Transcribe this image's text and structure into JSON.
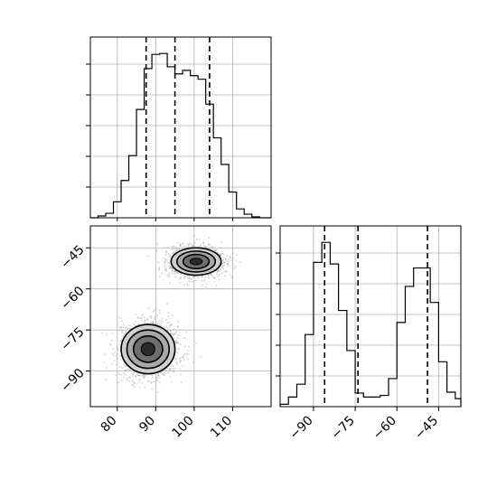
{
  "chart_data": [
    {
      "type": "histogram",
      "variable": "x",
      "xlim": [
        73,
        120
      ],
      "quantile_lines": [
        87.5,
        95,
        104
      ],
      "bin_edges": [
        73,
        75,
        77,
        79,
        81,
        83,
        85,
        87,
        89,
        91,
        93,
        95,
        97,
        99,
        101,
        103,
        105,
        107,
        109,
        111,
        113,
        115,
        117,
        119,
        120
      ],
      "counts": [
        0,
        2,
        5,
        18,
        42,
        70,
        122,
        168,
        184,
        185,
        170,
        162,
        166,
        160,
        156,
        128,
        90,
        60,
        29,
        10,
        4,
        1,
        0,
        0
      ],
      "grid": true
    },
    {
      "type": "contour-scatter",
      "variables": [
        "x",
        "y"
      ],
      "xlim": [
        73,
        120
      ],
      "ylim": [
        -103,
        -37
      ],
      "xticks": [
        "80",
        "90",
        "100",
        "110"
      ],
      "yticks": [
        "−45",
        "−60",
        "−75",
        "−90"
      ],
      "clusters": [
        {
          "center": [
            100.5,
            -50
          ],
          "contour_radii": [
            [
              6.5,
              5
            ],
            [
              5,
              3.8
            ],
            [
              3.4,
              2.6
            ],
            [
              1.6,
              1.2
            ]
          ]
        },
        {
          "center": [
            88,
            -82
          ],
          "contour_radii": [
            [
              7,
              9
            ],
            [
              5.5,
              7
            ],
            [
              3.8,
              4.8
            ],
            [
              1.8,
              2.4
            ]
          ]
        }
      ],
      "grid": true
    },
    {
      "type": "histogram",
      "variable": "y",
      "xlim": [
        -102,
        -37
      ],
      "quantile_lines": [
        -86,
        -74,
        -49
      ],
      "xticks": [
        "−90",
        "−75",
        "−60",
        "−45"
      ],
      "bin_edges": [
        -102,
        -99,
        -96,
        -93,
        -90,
        -87,
        -84,
        -81,
        -78,
        -75,
        -72,
        -69,
        -66,
        -63,
        -60,
        -57,
        -54,
        -51,
        -48,
        -45,
        -42,
        -39,
        -37
      ],
      "counts": [
        3,
        12,
        28,
        90,
        180,
        205,
        178,
        120,
        70,
        17,
        12,
        12,
        14,
        35,
        105,
        150,
        173,
        173,
        130,
        56,
        18,
        10
      ],
      "grid": true
    }
  ]
}
